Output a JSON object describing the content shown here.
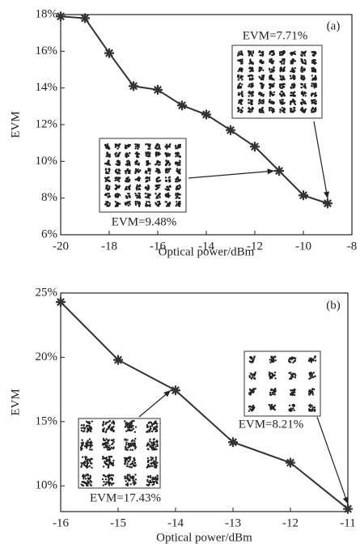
{
  "chart_data": [
    {
      "type": "line",
      "panel_label": "(a)",
      "xlabel": "Optical power/dBm",
      "ylabel": "EVM",
      "x": [
        -20,
        -19,
        -18,
        -17,
        -16,
        -15,
        -14,
        -13,
        -12,
        -11,
        -10,
        -9
      ],
      "values": [
        17.9,
        17.8,
        15.9,
        14.1,
        13.9,
        13.05,
        12.55,
        11.7,
        10.8,
        9.48,
        8.15,
        7.71
      ],
      "color": "#333333",
      "xlim": [
        -20,
        -8
      ],
      "xticks": [
        -20,
        -18,
        -16,
        -14,
        -12,
        -10,
        -8
      ],
      "ylim": [
        6,
        18
      ],
      "yticks": [
        {
          "value": 6,
          "label": "6%"
        },
        {
          "value": 8,
          "label": "8%"
        },
        {
          "value": 10,
          "label": "10%"
        },
        {
          "value": 12,
          "label": "12%"
        },
        {
          "value": 14,
          "label": "14%"
        },
        {
          "value": 16,
          "label": "16%"
        },
        {
          "value": 18,
          "label": "18%"
        }
      ],
      "annotations": [
        "EVM=7.71%",
        "EVM=9.48%"
      ]
    },
    {
      "type": "line",
      "panel_label": "(b)",
      "xlabel": "Optical power/dBm",
      "ylabel": "EVM",
      "x": [
        -16,
        -15,
        -14,
        -13,
        -12,
        -11
      ],
      "values": [
        24.3,
        19.8,
        17.43,
        13.4,
        11.8,
        8.21
      ],
      "color": "#333333",
      "xlim": [
        -16,
        -11
      ],
      "xticks": [
        -16,
        -15,
        -14,
        -13,
        -12,
        -11
      ],
      "ylim": [
        8,
        25
      ],
      "yticks": [
        {
          "value": 10,
          "label": "10%"
        },
        {
          "value": 15,
          "label": "15%"
        },
        {
          "value": 20,
          "label": "20%"
        },
        {
          "value": 25,
          "label": "25%"
        }
      ],
      "annotations": [
        "EVM=8.21%",
        "EVM=17.43%"
      ]
    }
  ]
}
